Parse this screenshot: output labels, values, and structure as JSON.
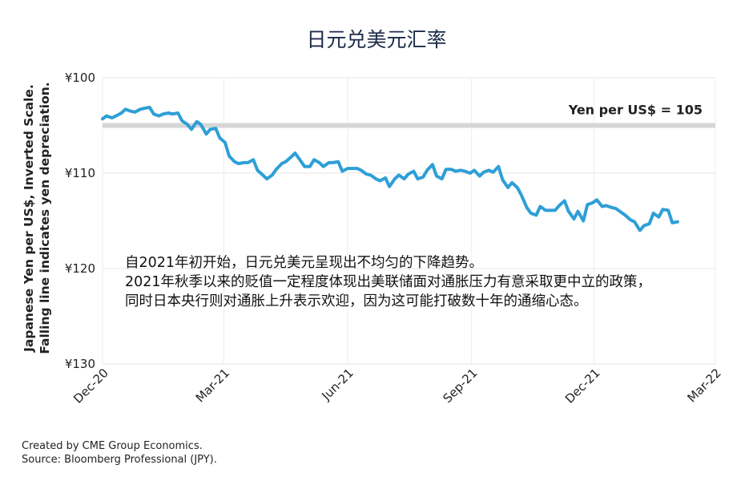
{
  "chart_data": {
    "type": "line",
    "title": "日元兑美元汇率",
    "ylabel_lines": [
      "Japanese Yen per US$, Inverted Scale.",
      "Falling line indicates yen depreciation."
    ],
    "y_inverted": true,
    "ylim": [
      100,
      130
    ],
    "yticks": [
      100,
      110,
      120,
      130
    ],
    "ytick_labels": [
      "¥100",
      "¥110",
      "¥120",
      "¥130"
    ],
    "xticks": [
      {
        "label": "Dec-20",
        "date": "2020-12-01"
      },
      {
        "label": "Mar-21",
        "date": "2021-03-01"
      },
      {
        "label": "Jun-21",
        "date": "2021-06-01"
      },
      {
        "label": "Sep-21",
        "date": "2021-09-01"
      },
      {
        "label": "Dec-21",
        "date": "2021-12-01"
      },
      {
        "label": "Mar-22",
        "date": "2022-03-01"
      }
    ],
    "grid": true,
    "reference_line": {
      "value": 105,
      "label": "Yen per US$ = 105",
      "color": "#d6d6d6"
    },
    "series": [
      {
        "color": "#2e9fd6",
        "points": [
          [
            "2020-12-01",
            104.3
          ],
          [
            "2020-12-04",
            104.0
          ],
          [
            "2020-12-08",
            104.2
          ],
          [
            "2020-12-11",
            104.0
          ],
          [
            "2020-12-15",
            103.7
          ],
          [
            "2020-12-18",
            103.3
          ],
          [
            "2020-12-22",
            103.5
          ],
          [
            "2020-12-25",
            103.6
          ],
          [
            "2020-12-29",
            103.3
          ],
          [
            "2021-01-01",
            103.2
          ],
          [
            "2021-01-05",
            103.1
          ],
          [
            "2021-01-08",
            103.8
          ],
          [
            "2021-01-12",
            104.0
          ],
          [
            "2021-01-15",
            103.8
          ],
          [
            "2021-01-19",
            103.7
          ],
          [
            "2021-01-22",
            103.8
          ],
          [
            "2021-01-26",
            103.7
          ],
          [
            "2021-01-29",
            104.5
          ],
          [
            "2021-02-02",
            104.9
          ],
          [
            "2021-02-05",
            105.4
          ],
          [
            "2021-02-09",
            104.6
          ],
          [
            "2021-02-12",
            104.9
          ],
          [
            "2021-02-16",
            105.9
          ],
          [
            "2021-02-19",
            105.4
          ],
          [
            "2021-02-23",
            105.3
          ],
          [
            "2021-02-26",
            106.3
          ],
          [
            "2021-03-02",
            106.8
          ],
          [
            "2021-03-05",
            108.2
          ],
          [
            "2021-03-09",
            108.8
          ],
          [
            "2021-03-12",
            109.0
          ],
          [
            "2021-03-16",
            108.9
          ],
          [
            "2021-03-19",
            108.9
          ],
          [
            "2021-03-23",
            108.6
          ],
          [
            "2021-03-26",
            109.7
          ],
          [
            "2021-03-30",
            110.2
          ],
          [
            "2021-04-02",
            110.6
          ],
          [
            "2021-04-06",
            110.2
          ],
          [
            "2021-04-09",
            109.6
          ],
          [
            "2021-04-13",
            109.0
          ],
          [
            "2021-04-16",
            108.8
          ],
          [
            "2021-04-20",
            108.3
          ],
          [
            "2021-04-23",
            107.9
          ],
          [
            "2021-04-27",
            108.7
          ],
          [
            "2021-04-30",
            109.3
          ],
          [
            "2021-05-04",
            109.3
          ],
          [
            "2021-05-07",
            108.6
          ],
          [
            "2021-05-11",
            108.9
          ],
          [
            "2021-05-14",
            109.3
          ],
          [
            "2021-05-18",
            108.9
          ],
          [
            "2021-05-21",
            108.9
          ],
          [
            "2021-05-25",
            108.8
          ],
          [
            "2021-05-28",
            109.8
          ],
          [
            "2021-06-01",
            109.5
          ],
          [
            "2021-06-04",
            109.5
          ],
          [
            "2021-06-08",
            109.5
          ],
          [
            "2021-06-11",
            109.7
          ],
          [
            "2021-06-15",
            110.1
          ],
          [
            "2021-06-18",
            110.2
          ],
          [
            "2021-06-22",
            110.6
          ],
          [
            "2021-06-25",
            110.8
          ],
          [
            "2021-06-29",
            110.5
          ],
          [
            "2021-07-02",
            111.4
          ],
          [
            "2021-07-06",
            110.6
          ],
          [
            "2021-07-09",
            110.2
          ],
          [
            "2021-07-13",
            110.6
          ],
          [
            "2021-07-16",
            110.1
          ],
          [
            "2021-07-20",
            109.8
          ],
          [
            "2021-07-23",
            110.6
          ],
          [
            "2021-07-27",
            110.4
          ],
          [
            "2021-07-30",
            109.7
          ],
          [
            "2021-08-03",
            109.1
          ],
          [
            "2021-08-06",
            110.3
          ],
          [
            "2021-08-10",
            110.6
          ],
          [
            "2021-08-13",
            109.6
          ],
          [
            "2021-08-17",
            109.6
          ],
          [
            "2021-08-20",
            109.8
          ],
          [
            "2021-08-24",
            109.7
          ],
          [
            "2021-08-27",
            109.8
          ],
          [
            "2021-08-31",
            110.0
          ],
          [
            "2021-09-03",
            109.7
          ],
          [
            "2021-09-07",
            110.3
          ],
          [
            "2021-09-10",
            109.9
          ],
          [
            "2021-09-14",
            109.7
          ],
          [
            "2021-09-17",
            109.9
          ],
          [
            "2021-09-21",
            109.3
          ],
          [
            "2021-09-24",
            110.7
          ],
          [
            "2021-09-28",
            111.5
          ],
          [
            "2021-10-01",
            111.0
          ],
          [
            "2021-10-05",
            111.5
          ],
          [
            "2021-10-08",
            112.3
          ],
          [
            "2021-10-12",
            113.6
          ],
          [
            "2021-10-15",
            114.2
          ],
          [
            "2021-10-19",
            114.4
          ],
          [
            "2021-10-22",
            113.5
          ],
          [
            "2021-10-26",
            113.9
          ],
          [
            "2021-10-29",
            113.9
          ],
          [
            "2021-11-02",
            113.9
          ],
          [
            "2021-11-05",
            113.4
          ],
          [
            "2021-11-09",
            112.9
          ],
          [
            "2021-11-12",
            114.0
          ],
          [
            "2021-11-16",
            114.8
          ],
          [
            "2021-11-19",
            114.0
          ],
          [
            "2021-11-23",
            115.0
          ],
          [
            "2021-11-26",
            113.3
          ],
          [
            "2021-11-30",
            113.1
          ],
          [
            "2021-12-03",
            112.8
          ],
          [
            "2021-12-07",
            113.5
          ],
          [
            "2021-12-10",
            113.4
          ],
          [
            "2021-12-14",
            113.6
          ],
          [
            "2021-12-17",
            113.7
          ],
          [
            "2021-12-21",
            114.1
          ],
          [
            "2021-12-24",
            114.4
          ],
          [
            "2021-12-28",
            114.9
          ],
          [
            "2021-12-31",
            115.1
          ],
          [
            "2022-01-04",
            116.0
          ],
          [
            "2022-01-07",
            115.5
          ],
          [
            "2022-01-11",
            115.3
          ],
          [
            "2022-01-14",
            114.2
          ],
          [
            "2022-01-18",
            114.6
          ],
          [
            "2022-01-21",
            113.8
          ],
          [
            "2022-01-25",
            113.9
          ],
          [
            "2022-01-28",
            115.2
          ],
          [
            "2022-02-01",
            115.1
          ]
        ]
      }
    ],
    "annotation_lines": [
      "自2021年初开始，日元兑美元呈现出不均匀的下降趋势。",
      "2021年秋季以来的贬值一定程度体现出美联储面对通胀压力有意采取更中立的政策，",
      "同时日本央行则对通胀上升表示欢迎，因为这可能打破数十年的通缩心态。"
    ]
  },
  "footer": {
    "line1": "Created by CME Group Economics.",
    "line2": "Source: Bloomberg Professional (JPY)."
  }
}
